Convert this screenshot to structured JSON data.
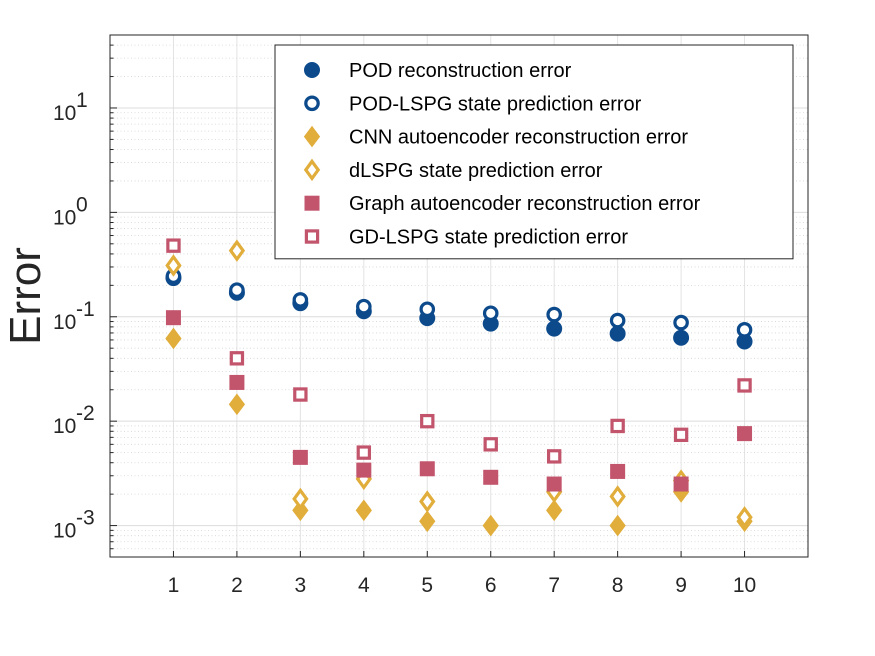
{
  "chart_data": {
    "type": "scatter",
    "title": "",
    "xlabel": "",
    "ylabel": "Error",
    "yscale": "log",
    "ylim": [
      0.0005,
      50
    ],
    "xlim": [
      0,
      11
    ],
    "x_ticks": [
      "1",
      "2",
      "3",
      "4",
      "5",
      "6",
      "7",
      "8",
      "9",
      "10"
    ],
    "y_ticks": [
      {
        "value": 0.001,
        "base": "10",
        "exp": "-3"
      },
      {
        "value": 0.01,
        "base": "10",
        "exp": "-2"
      },
      {
        "value": 0.1,
        "base": "10",
        "exp": "-1"
      },
      {
        "value": 1,
        "base": "10",
        "exp": "0"
      },
      {
        "value": 10,
        "base": "10",
        "exp": "1"
      }
    ],
    "grid": true,
    "legend_position": "top-right",
    "x": [
      1,
      2,
      3,
      4,
      5,
      6,
      7,
      8,
      9,
      10
    ],
    "series": [
      {
        "name": "POD reconstruction error",
        "marker": "circle",
        "filled": true,
        "color": "#0C4A8C",
        "values": [
          0.235,
          0.17,
          0.135,
          0.113,
          0.097,
          0.086,
          0.077,
          0.069,
          0.063,
          0.058
        ]
      },
      {
        "name": "POD-LSPG state prediction error",
        "marker": "circle",
        "filled": false,
        "color": "#0C4A8C",
        "values": [
          0.245,
          0.18,
          0.145,
          0.125,
          0.118,
          0.108,
          0.105,
          0.092,
          0.088,
          0.075
        ]
      },
      {
        "name": "CNN autoencoder reconstruction error",
        "marker": "diamond",
        "filled": true,
        "color": "#E1AD3B",
        "values": [
          0.062,
          0.0145,
          0.0014,
          0.0014,
          0.0011,
          0.001,
          0.0014,
          0.001,
          0.0021,
          0.0011
        ]
      },
      {
        "name": "dLSPG state prediction error",
        "marker": "diamond",
        "filled": false,
        "color": "#E1AD3B",
        "values": [
          0.31,
          0.43,
          0.0018,
          0.0028,
          0.0017,
          null,
          0.0021,
          0.0019,
          0.0027,
          0.0012
        ]
      },
      {
        "name": "Graph autoencoder reconstruction error",
        "marker": "square",
        "filled": true,
        "color": "#C2546C",
        "values": [
          0.098,
          0.0235,
          0.0045,
          0.0034,
          0.0035,
          0.0029,
          0.0025,
          0.0033,
          0.0025,
          0.0076
        ]
      },
      {
        "name": "GD-LSPG state prediction error",
        "marker": "square",
        "filled": false,
        "color": "#C2546C",
        "values": [
          0.48,
          0.04,
          0.018,
          0.005,
          0.01,
          0.006,
          0.0046,
          0.009,
          0.0074,
          0.022
        ]
      }
    ]
  }
}
